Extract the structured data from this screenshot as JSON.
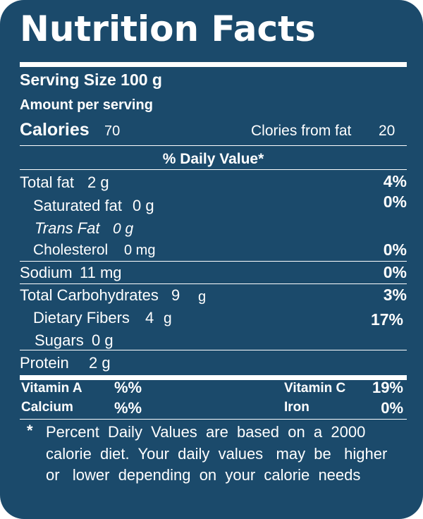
{
  "title": "Nutrition Facts",
  "serving_size": "Serving Size 100 g",
  "amount_per_serving": "Amount per serving",
  "calories": {
    "label": "Calories",
    "value": "70"
  },
  "calories_from_fat": {
    "label": "Clories from fat",
    "value": "20"
  },
  "daily_value_header": "% Daily Value*",
  "nutrients": {
    "total_fat": {
      "label": "Total fat",
      "amount": "2 g",
      "dv": "4%"
    },
    "saturated_fat": {
      "label": "Saturated fat",
      "amount": "0 g",
      "dv": "0%"
    },
    "trans_fat": {
      "label": "Trans Fat",
      "amount": "0 g"
    },
    "cholesterol": {
      "label": "Cholesterol",
      "amount": "0 mg",
      "dv": "0%"
    },
    "sodium": {
      "label": "Sodium",
      "amount": "11 mg",
      "dv": "0%"
    },
    "total_carbohydrates": {
      "label": "Total Carbohydrates",
      "amount": "9",
      "unit": "g",
      "dv": "3%"
    },
    "dietary_fibers": {
      "label": "Dietary Fibers",
      "amount": "4",
      "unit": "g",
      "dv": "17%"
    },
    "sugars": {
      "label": "Sugars",
      "amount": "0 g"
    },
    "protein": {
      "label": "Protein",
      "amount": "2 g"
    }
  },
  "vitamins": {
    "vitamin_a": {
      "label": "Vitamin A",
      "value": "%%"
    },
    "vitamin_c": {
      "label": "Vitamin C",
      "value": "19%"
    },
    "calcium": {
      "label": "Calcium",
      "value": "%%"
    },
    "iron": {
      "label": "Iron",
      "value": "0%"
    }
  },
  "footnote": {
    "star": "*",
    "line1": "Percent  Daily  Values  are  based  on  a  2000",
    "line2": "calorie  diet.  Your  daily  values   may  be   higher",
    "line3": "or   lower  depending  on  your  calorie  needs"
  },
  "colors": {
    "background": "#1b4a6b",
    "text": "#ffffff"
  }
}
